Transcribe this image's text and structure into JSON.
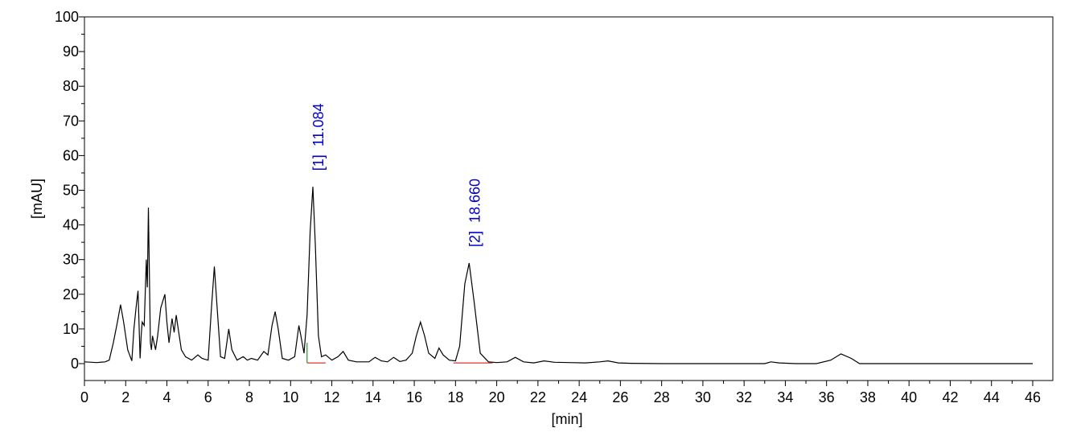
{
  "chart_data": {
    "type": "line",
    "title": "",
    "xlabel": "[min]",
    "ylabel": "[mAU]",
    "xlim": [
      0,
      47
    ],
    "ylim": [
      -5,
      100
    ],
    "xticks": [
      0,
      2,
      4,
      6,
      8,
      10,
      12,
      14,
      16,
      18,
      20,
      22,
      24,
      26,
      28,
      30,
      32,
      34,
      36,
      38,
      40,
      42,
      44,
      46
    ],
    "yticks": [
      0,
      10,
      20,
      30,
      40,
      50,
      60,
      70,
      80,
      90,
      100
    ],
    "grid": false,
    "colors": {
      "trace": "#000000",
      "peak_label": "#0000cc",
      "baseline": "#cc0000",
      "peak_start": "#008000"
    },
    "series": [
      {
        "x": [
          0.0,
          0.6,
          1.0,
          1.2,
          1.4,
          1.6,
          1.75,
          1.9,
          2.1,
          2.3,
          2.4,
          2.5,
          2.6,
          2.7,
          2.75,
          2.8,
          2.9,
          3.0,
          3.05,
          3.1,
          3.2,
          3.25,
          3.3,
          3.45,
          3.55,
          3.7,
          3.9,
          4.0,
          4.1,
          4.25,
          4.35,
          4.45,
          4.55,
          4.7,
          4.9,
          5.2,
          5.5,
          5.7,
          6.0,
          6.15,
          6.3,
          6.45,
          6.6,
          6.8,
          7.0,
          7.15,
          7.4,
          7.7,
          7.9,
          8.1,
          8.4,
          8.7,
          8.9,
          9.1,
          9.25,
          9.4,
          9.6,
          9.9,
          10.2,
          10.4,
          10.5,
          10.65,
          10.8,
          10.95,
          11.08,
          11.2,
          11.35,
          11.5,
          11.7,
          12.0,
          12.3,
          12.55,
          12.8,
          13.2,
          13.8,
          14.1,
          14.4,
          14.7,
          15.0,
          15.3,
          15.6,
          15.9,
          16.1,
          16.3,
          16.5,
          16.7,
          17.0,
          17.2,
          17.4,
          17.7,
          18.0,
          18.2,
          18.45,
          18.66,
          18.9,
          19.2,
          19.6,
          20.0,
          20.5,
          20.9,
          21.3,
          21.8,
          22.3,
          22.8,
          23.5,
          24.3,
          25.0,
          25.4,
          25.9,
          26.5,
          28.0,
          30.0,
          32.0,
          33.0,
          33.3,
          33.7,
          34.5,
          35.5,
          36.2,
          36.7,
          37.2,
          37.6,
          38.5,
          40.0,
          42.0,
          44.0,
          46.0
        ],
        "y": [
          0.5,
          0.3,
          0.5,
          1.0,
          6.0,
          12.0,
          17.0,
          12.0,
          4.0,
          0.8,
          10.0,
          16.0,
          21.0,
          1.5,
          8.0,
          12.0,
          11.0,
          30.0,
          22.0,
          45.0,
          6.0,
          4.0,
          8.0,
          4.0,
          8.0,
          16.0,
          20.0,
          12.0,
          6.0,
          13.0,
          9.0,
          14.0,
          10.0,
          4.0,
          2.0,
          1.0,
          2.5,
          1.5,
          1.0,
          15.0,
          28.0,
          15.0,
          2.0,
          1.5,
          10.0,
          4.0,
          1.0,
          2.0,
          1.0,
          1.5,
          1.0,
          3.5,
          2.5,
          11.0,
          15.0,
          10.0,
          1.5,
          1.0,
          2.0,
          11.0,
          8.0,
          3.0,
          14.0,
          38.0,
          51.0,
          34.0,
          8.0,
          2.0,
          2.5,
          1.0,
          2.0,
          3.5,
          1.0,
          0.5,
          0.5,
          1.8,
          0.8,
          0.5,
          1.8,
          0.6,
          1.0,
          3.0,
          8.0,
          12.0,
          8.0,
          3.0,
          1.5,
          4.5,
          2.5,
          1.0,
          0.8,
          5.0,
          23.0,
          29.0,
          18.0,
          3.0,
          0.5,
          0.3,
          0.5,
          1.8,
          0.5,
          0.2,
          0.8,
          0.4,
          0.3,
          0.2,
          0.5,
          0.8,
          0.2,
          0.1,
          0.0,
          0.0,
          0.0,
          0.0,
          0.5,
          0.2,
          0.0,
          0.0,
          1.0,
          2.8,
          1.5,
          0.0,
          0.0,
          0.0,
          0.0,
          0.0,
          0.0
        ]
      }
    ],
    "peaks": [
      {
        "label": "[1]  11.084",
        "x": 11.084,
        "y": 51,
        "start": 10.8,
        "end": 11.7
      },
      {
        "label": "[2]  18.660",
        "x": 18.66,
        "y": 29,
        "start": 17.9,
        "end": 19.8
      }
    ]
  }
}
